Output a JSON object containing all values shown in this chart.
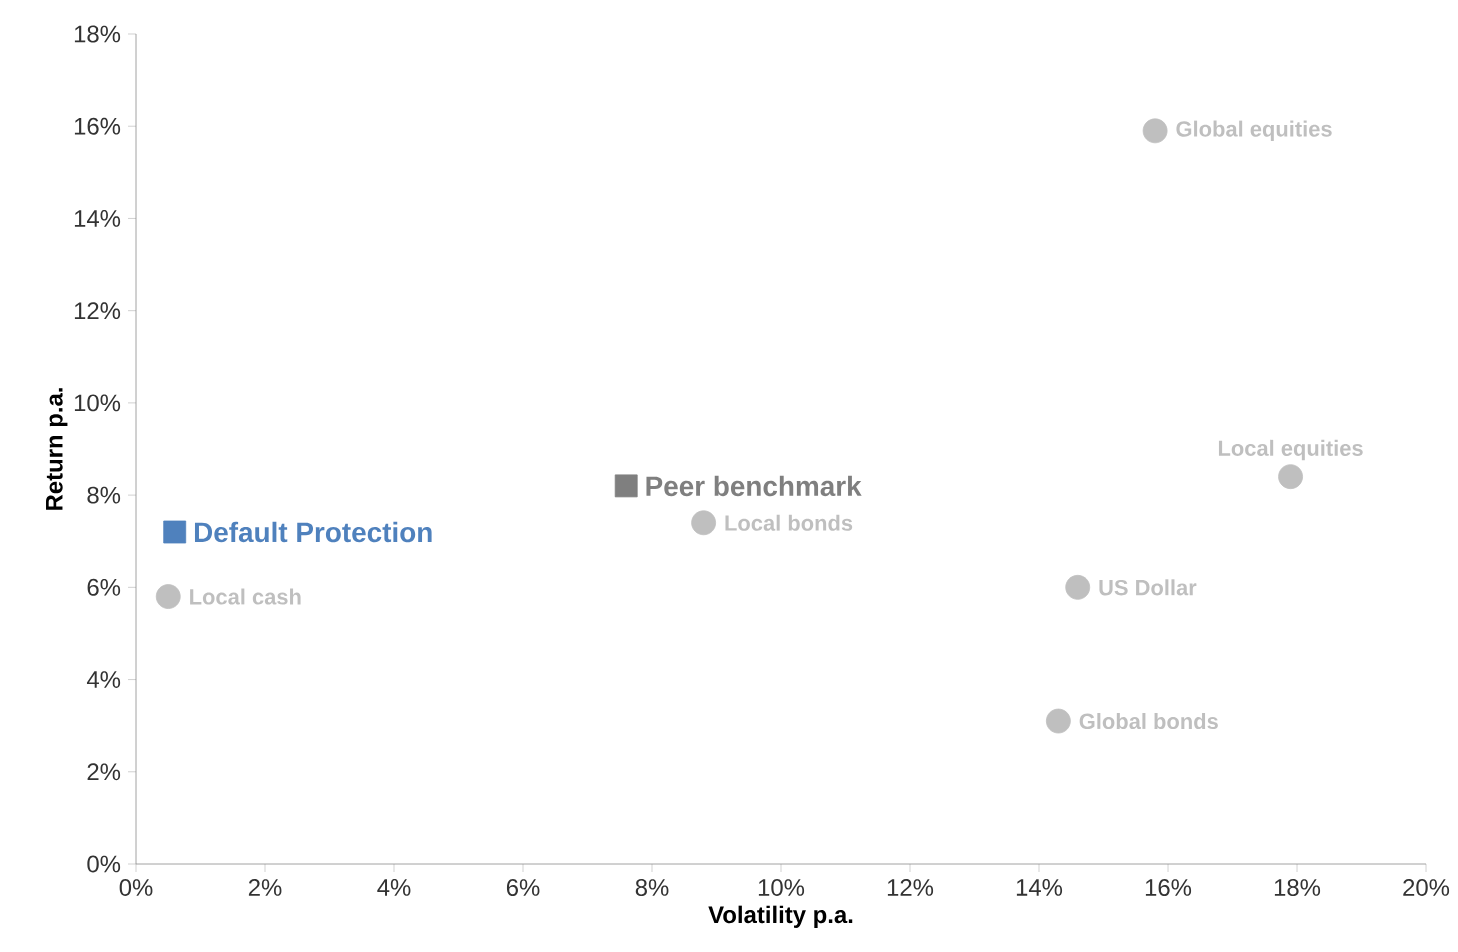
{
  "chart_data": {
    "type": "scatter",
    "xlabel": "Volatility p.a.",
    "ylabel": "Return p.a.",
    "xlim": [
      0,
      20
    ],
    "ylim": [
      0,
      18
    ],
    "xticks": [
      {
        "value": 0,
        "label": "0%"
      },
      {
        "value": 2,
        "label": "2%"
      },
      {
        "value": 4,
        "label": "4%"
      },
      {
        "value": 6,
        "label": "6%"
      },
      {
        "value": 8,
        "label": "8%"
      },
      {
        "value": 10,
        "label": "10%"
      },
      {
        "value": 12,
        "label": "12%"
      },
      {
        "value": 14,
        "label": "14%"
      },
      {
        "value": 16,
        "label": "16%"
      },
      {
        "value": 18,
        "label": "18%"
      },
      {
        "value": 20,
        "label": "20%"
      }
    ],
    "yticks": [
      {
        "value": 0,
        "label": "0%"
      },
      {
        "value": 2,
        "label": "2%"
      },
      {
        "value": 4,
        "label": "4%"
      },
      {
        "value": 6,
        "label": "6%"
      },
      {
        "value": 8,
        "label": "8%"
      },
      {
        "value": 10,
        "label": "10%"
      },
      {
        "value": 12,
        "label": "12%"
      },
      {
        "value": 14,
        "label": "14%"
      },
      {
        "value": 16,
        "label": "16%"
      },
      {
        "value": 18,
        "label": "18%"
      }
    ],
    "grid": false,
    "series": [
      {
        "name": "Default Protection",
        "color": "#4f81bd",
        "marker": "square",
        "x": [
          0.6
        ],
        "values": [
          7.2
        ]
      },
      {
        "name": "Peer benchmark",
        "color": "#7f7f7f",
        "marker": "square",
        "x": [
          7.6
        ],
        "values": [
          8.2
        ]
      },
      {
        "name": "Local cash",
        "color": "#bfbfbf",
        "marker": "circle",
        "x": [
          0.5
        ],
        "values": [
          5.8
        ]
      },
      {
        "name": "Local bonds",
        "color": "#bfbfbf",
        "marker": "circle",
        "x": [
          8.8
        ],
        "values": [
          7.4
        ]
      },
      {
        "name": "Global equities",
        "color": "#bfbfbf",
        "marker": "circle",
        "x": [
          15.8
        ],
        "values": [
          15.9
        ]
      },
      {
        "name": "Local equities",
        "color": "#bfbfbf",
        "marker": "circle",
        "x": [
          17.9
        ],
        "values": [
          8.4
        ]
      },
      {
        "name": "US Dollar",
        "color": "#bfbfbf",
        "marker": "circle",
        "x": [
          14.6
        ],
        "values": [
          6.0
        ]
      },
      {
        "name": "Global bonds",
        "color": "#bfbfbf",
        "marker": "circle",
        "x": [
          14.3
        ],
        "values": [
          3.1
        ]
      }
    ]
  }
}
